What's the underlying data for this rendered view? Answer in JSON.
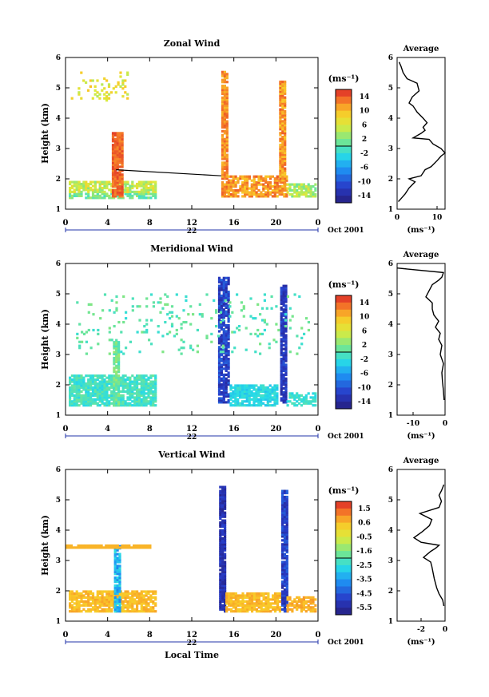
{
  "footer_label": "Local Time",
  "chart_data": [
    {
      "type": "heatmap",
      "title": "Zonal Wind",
      "ylabel": "Height (km)",
      "date_label": "22",
      "month_label": "Oct 2001",
      "x_ticks": [
        "0",
        "4",
        "8",
        "12",
        "16",
        "20",
        "0"
      ],
      "xlim": [
        0,
        24
      ],
      "y_ticks": [
        "1",
        "2",
        "3",
        "4",
        "5",
        "6"
      ],
      "ylim": [
        1,
        6
      ],
      "colorbar": {
        "unit": "(ms⁻¹)",
        "ticks": [
          "14",
          "10",
          "6",
          "2",
          "-2",
          "-6",
          "-10",
          "-14"
        ],
        "range": [
          -16,
          16
        ]
      },
      "profile": {
        "title": "Average",
        "xlabel": "(ms⁻¹)",
        "x_ticks": [
          "0",
          "10"
        ],
        "xlim": [
          0,
          12
        ],
        "y_ticks": [
          "1",
          "2",
          "3",
          "4",
          "5",
          "6"
        ],
        "ylim": [
          1,
          6
        ],
        "points": [
          [
            0.3,
            1.25
          ],
          [
            1,
            1.35
          ],
          [
            2,
            1.5
          ],
          [
            3,
            1.7
          ],
          [
            4.5,
            1.9
          ],
          [
            3,
            2.0
          ],
          [
            6,
            2.1
          ],
          [
            7,
            2.3
          ],
          [
            8.5,
            2.4
          ],
          [
            10,
            2.6
          ],
          [
            11,
            2.75
          ],
          [
            12,
            2.85
          ],
          [
            11,
            3.0
          ],
          [
            9,
            3.15
          ],
          [
            8,
            3.3
          ],
          [
            4,
            3.35
          ],
          [
            6,
            3.5
          ],
          [
            7,
            3.6
          ],
          [
            6.5,
            3.7
          ],
          [
            7.5,
            3.85
          ],
          [
            6.5,
            4.0
          ],
          [
            5,
            4.2
          ],
          [
            4,
            4.4
          ],
          [
            3,
            4.5
          ],
          [
            3.8,
            4.7
          ],
          [
            5.5,
            4.9
          ],
          [
            5,
            5.15
          ],
          [
            2.5,
            5.3
          ],
          [
            1.5,
            5.5
          ],
          [
            1,
            5.7
          ],
          [
            0.5,
            5.85
          ]
        ]
      }
    },
    {
      "type": "heatmap",
      "title": "Meridional Wind",
      "ylabel": "Height (km)",
      "date_label": "22",
      "month_label": "Oct 2001",
      "x_ticks": [
        "0",
        "4",
        "8",
        "12",
        "16",
        "20",
        "0"
      ],
      "xlim": [
        0,
        24
      ],
      "y_ticks": [
        "1",
        "2",
        "3",
        "4",
        "5",
        "6"
      ],
      "ylim": [
        1,
        6
      ],
      "colorbar": {
        "unit": "(ms⁻¹)",
        "ticks": [
          "14",
          "10",
          "6",
          "2",
          "-2",
          "-6",
          "-10",
          "-14"
        ],
        "range": [
          -16,
          16
        ]
      },
      "profile": {
        "title": "Average",
        "xlabel": "(ms⁻¹)",
        "x_ticks": [
          "-10",
          "0"
        ],
        "xlim": [
          -15,
          0
        ],
        "y_ticks": [
          "1",
          "2",
          "3",
          "4",
          "5",
          "6"
        ],
        "ylim": [
          1,
          6
        ],
        "points": [
          [
            -0.3,
            1.5
          ],
          [
            -0.5,
            1.8
          ],
          [
            -0.8,
            2.1
          ],
          [
            -1,
            2.4
          ],
          [
            -0.5,
            2.7
          ],
          [
            -1.5,
            3.0
          ],
          [
            -1,
            3.3
          ],
          [
            -2,
            3.5
          ],
          [
            -1.5,
            3.7
          ],
          [
            -3,
            3.9
          ],
          [
            -2,
            4.1
          ],
          [
            -3.5,
            4.3
          ],
          [
            -4,
            4.5
          ],
          [
            -4,
            4.7
          ],
          [
            -6,
            4.9
          ],
          [
            -5,
            5.1
          ],
          [
            -4,
            5.3
          ],
          [
            -2,
            5.45
          ],
          [
            -1,
            5.55
          ],
          [
            -0.5,
            5.7
          ],
          [
            -15,
            5.85
          ]
        ]
      }
    },
    {
      "type": "heatmap",
      "title": "Vertical Wind",
      "ylabel": "Height (km)",
      "date_label": "22",
      "month_label": "Oct 2001",
      "footer": "Local Time",
      "x_ticks": [
        "0",
        "4",
        "8",
        "12",
        "16",
        "20",
        "0"
      ],
      "xlim": [
        0,
        24
      ],
      "y_ticks": [
        "1",
        "2",
        "3",
        "4",
        "5",
        "6"
      ],
      "ylim": [
        1,
        6
      ],
      "colorbar": {
        "unit": "(ms⁻¹)",
        "ticks": [
          "1.5",
          "0.6",
          "-0.5",
          "-1.6",
          "-2.5",
          "-3.5",
          "-4.5",
          "-5.5"
        ],
        "range": [
          -6.3,
          2.3
        ]
      },
      "profile": {
        "title": "Average",
        "xlabel": "(ms⁻¹)",
        "x_ticks": [
          "-2",
          "0"
        ],
        "xlim": [
          -4,
          0
        ],
        "y_ticks": [
          "1",
          "2",
          "3",
          "4",
          "5",
          "6"
        ],
        "ylim": [
          1,
          6
        ],
        "points": [
          [
            -0.1,
            1.5
          ],
          [
            -0.2,
            1.7
          ],
          [
            -0.5,
            1.9
          ],
          [
            -0.7,
            2.1
          ],
          [
            -0.9,
            2.4
          ],
          [
            -1.0,
            2.6
          ],
          [
            -1.1,
            2.8
          ],
          [
            -1.2,
            2.95
          ],
          [
            -1.8,
            3.1
          ],
          [
            -1.2,
            3.3
          ],
          [
            -0.8,
            3.4
          ],
          [
            -0.5,
            3.5
          ],
          [
            -2.0,
            3.6
          ],
          [
            -2.6,
            3.75
          ],
          [
            -1.9,
            3.95
          ],
          [
            -1.3,
            4.15
          ],
          [
            -1.1,
            4.35
          ],
          [
            -2.1,
            4.55
          ],
          [
            -0.5,
            4.75
          ],
          [
            -0.3,
            4.95
          ],
          [
            -0.5,
            5.15
          ],
          [
            -0.3,
            5.3
          ],
          [
            -0.1,
            5.5
          ]
        ]
      }
    }
  ]
}
